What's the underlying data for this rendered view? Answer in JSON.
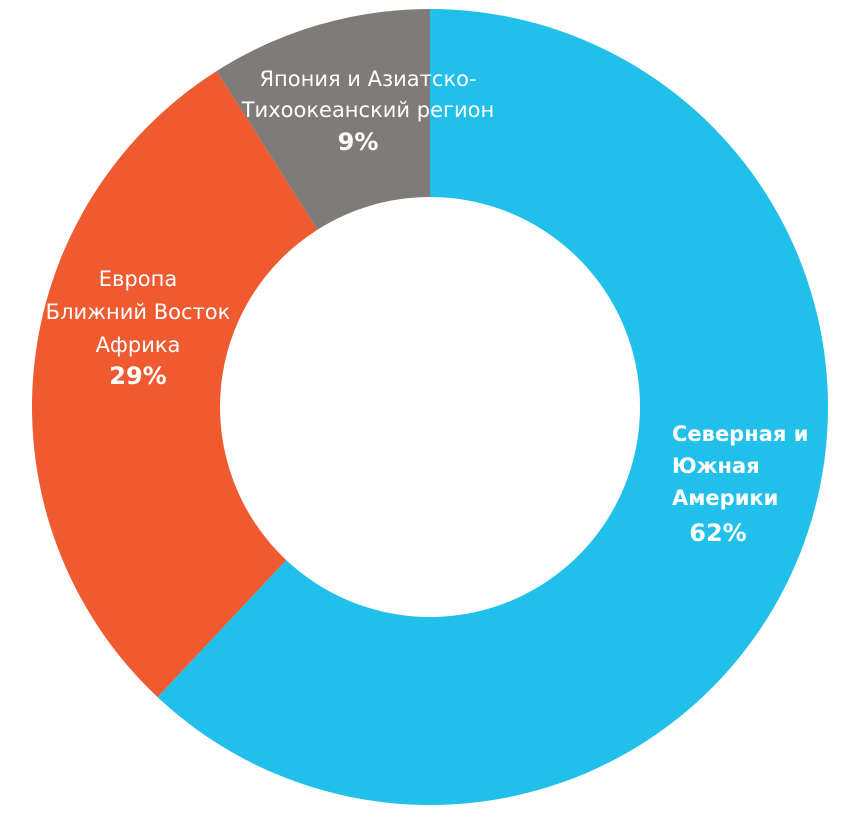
{
  "chart_data": {
    "type": "donut",
    "categories": [
      [
        "Северная и",
        "Южная",
        "Америки"
      ],
      [
        "Европа",
        "Ближний Восток",
        "Африка"
      ],
      [
        "Япония и Азиатско-",
        "Тихоокеанский регион"
      ]
    ],
    "values": [
      62,
      29,
      9
    ],
    "value_labels": [
      "62%",
      "29%",
      "9%"
    ],
    "colors": [
      "#20c0ea",
      "#f05a30",
      "#7f7b79"
    ]
  }
}
